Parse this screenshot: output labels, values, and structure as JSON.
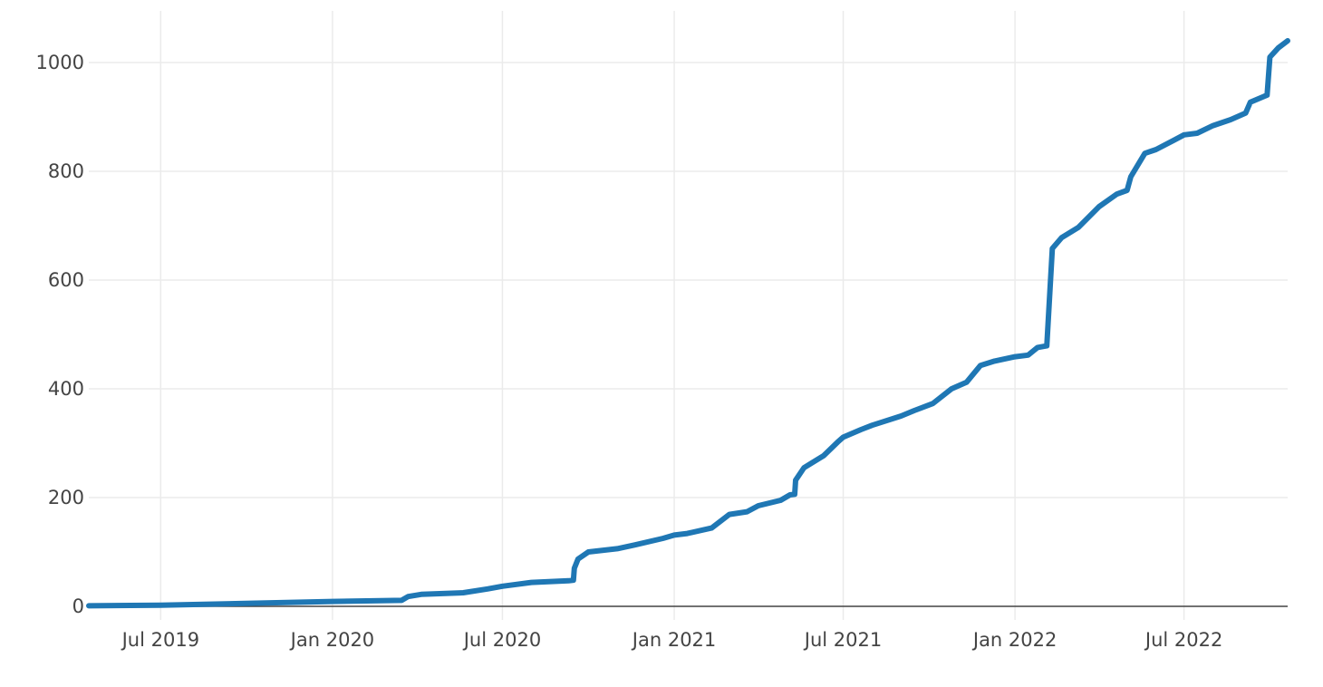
{
  "chart_data": {
    "type": "line",
    "title": "",
    "xlabel": "",
    "ylabel": "",
    "x_axis_type": "date",
    "xlim": [
      "2019-04-15",
      "2022-10-20"
    ],
    "ylim": [
      -25,
      1095
    ],
    "x_ticks": [
      {
        "date": "2019-07-01",
        "label": "Jul 2019"
      },
      {
        "date": "2020-01-01",
        "label": "Jan 2020"
      },
      {
        "date": "2020-07-01",
        "label": "Jul 2020"
      },
      {
        "date": "2021-01-01",
        "label": "Jan 2021"
      },
      {
        "date": "2021-07-01",
        "label": "Jul 2021"
      },
      {
        "date": "2022-01-01",
        "label": "Jan 2022"
      },
      {
        "date": "2022-07-01",
        "label": "Jul 2022"
      }
    ],
    "y_ticks": [
      {
        "value": 0,
        "label": "0"
      },
      {
        "value": 200,
        "label": "200"
      },
      {
        "value": 400,
        "label": "400"
      },
      {
        "value": 600,
        "label": "600"
      },
      {
        "value": 800,
        "label": "800"
      },
      {
        "value": 1000,
        "label": "1000"
      }
    ],
    "grid": true,
    "legend": "none",
    "series": [
      {
        "color": "#1f77b4",
        "points": [
          [
            "2019-04-15",
            1
          ],
          [
            "2019-07-01",
            2
          ],
          [
            "2020-01-01",
            9
          ],
          [
            "2020-03-15",
            11
          ],
          [
            "2020-03-22",
            18
          ],
          [
            "2020-04-05",
            22
          ],
          [
            "2020-05-20",
            25
          ],
          [
            "2020-06-15",
            32
          ],
          [
            "2020-07-01",
            37
          ],
          [
            "2020-08-01",
            44
          ],
          [
            "2020-09-10",
            47
          ],
          [
            "2020-09-15",
            48
          ],
          [
            "2020-09-16",
            70
          ],
          [
            "2020-09-20",
            87
          ],
          [
            "2020-10-01",
            100
          ],
          [
            "2020-11-01",
            106
          ],
          [
            "2020-11-20",
            113
          ],
          [
            "2020-12-20",
            125
          ],
          [
            "2021-01-01",
            131
          ],
          [
            "2021-01-15",
            134
          ],
          [
            "2021-02-10",
            144
          ],
          [
            "2021-03-01",
            169
          ],
          [
            "2021-03-20",
            174
          ],
          [
            "2021-04-01",
            185
          ],
          [
            "2021-04-25",
            195
          ],
          [
            "2021-05-05",
            205
          ],
          [
            "2021-05-10",
            206
          ],
          [
            "2021-05-11",
            232
          ],
          [
            "2021-05-20",
            255
          ],
          [
            "2021-06-10",
            277
          ],
          [
            "2021-06-25",
            302
          ],
          [
            "2021-07-01",
            311
          ],
          [
            "2021-07-20",
            325
          ],
          [
            "2021-08-01",
            333
          ],
          [
            "2021-09-01",
            350
          ],
          [
            "2021-09-15",
            360
          ],
          [
            "2021-10-05",
            373
          ],
          [
            "2021-10-25",
            400
          ],
          [
            "2021-11-10",
            412
          ],
          [
            "2021-11-25",
            443
          ],
          [
            "2021-12-10",
            451
          ],
          [
            "2022-01-01",
            459
          ],
          [
            "2022-01-15",
            462
          ],
          [
            "2022-01-25",
            476
          ],
          [
            "2022-02-04",
            479
          ],
          [
            "2022-02-10",
            658
          ],
          [
            "2022-02-20",
            678
          ],
          [
            "2022-03-10",
            697
          ],
          [
            "2022-04-01",
            735
          ],
          [
            "2022-04-20",
            758
          ],
          [
            "2022-05-01",
            765
          ],
          [
            "2022-05-05",
            790
          ],
          [
            "2022-05-20",
            833
          ],
          [
            "2022-06-01",
            840
          ],
          [
            "2022-06-20",
            857
          ],
          [
            "2022-07-01",
            867
          ],
          [
            "2022-07-15",
            870
          ],
          [
            "2022-08-01",
            884
          ],
          [
            "2022-08-20",
            895
          ],
          [
            "2022-09-05",
            907
          ],
          [
            "2022-09-10",
            927
          ],
          [
            "2022-09-25",
            938
          ],
          [
            "2022-09-28",
            940
          ],
          [
            "2022-10-01",
            1010
          ],
          [
            "2022-10-10",
            1027
          ],
          [
            "2022-10-20",
            1040
          ]
        ]
      }
    ]
  }
}
